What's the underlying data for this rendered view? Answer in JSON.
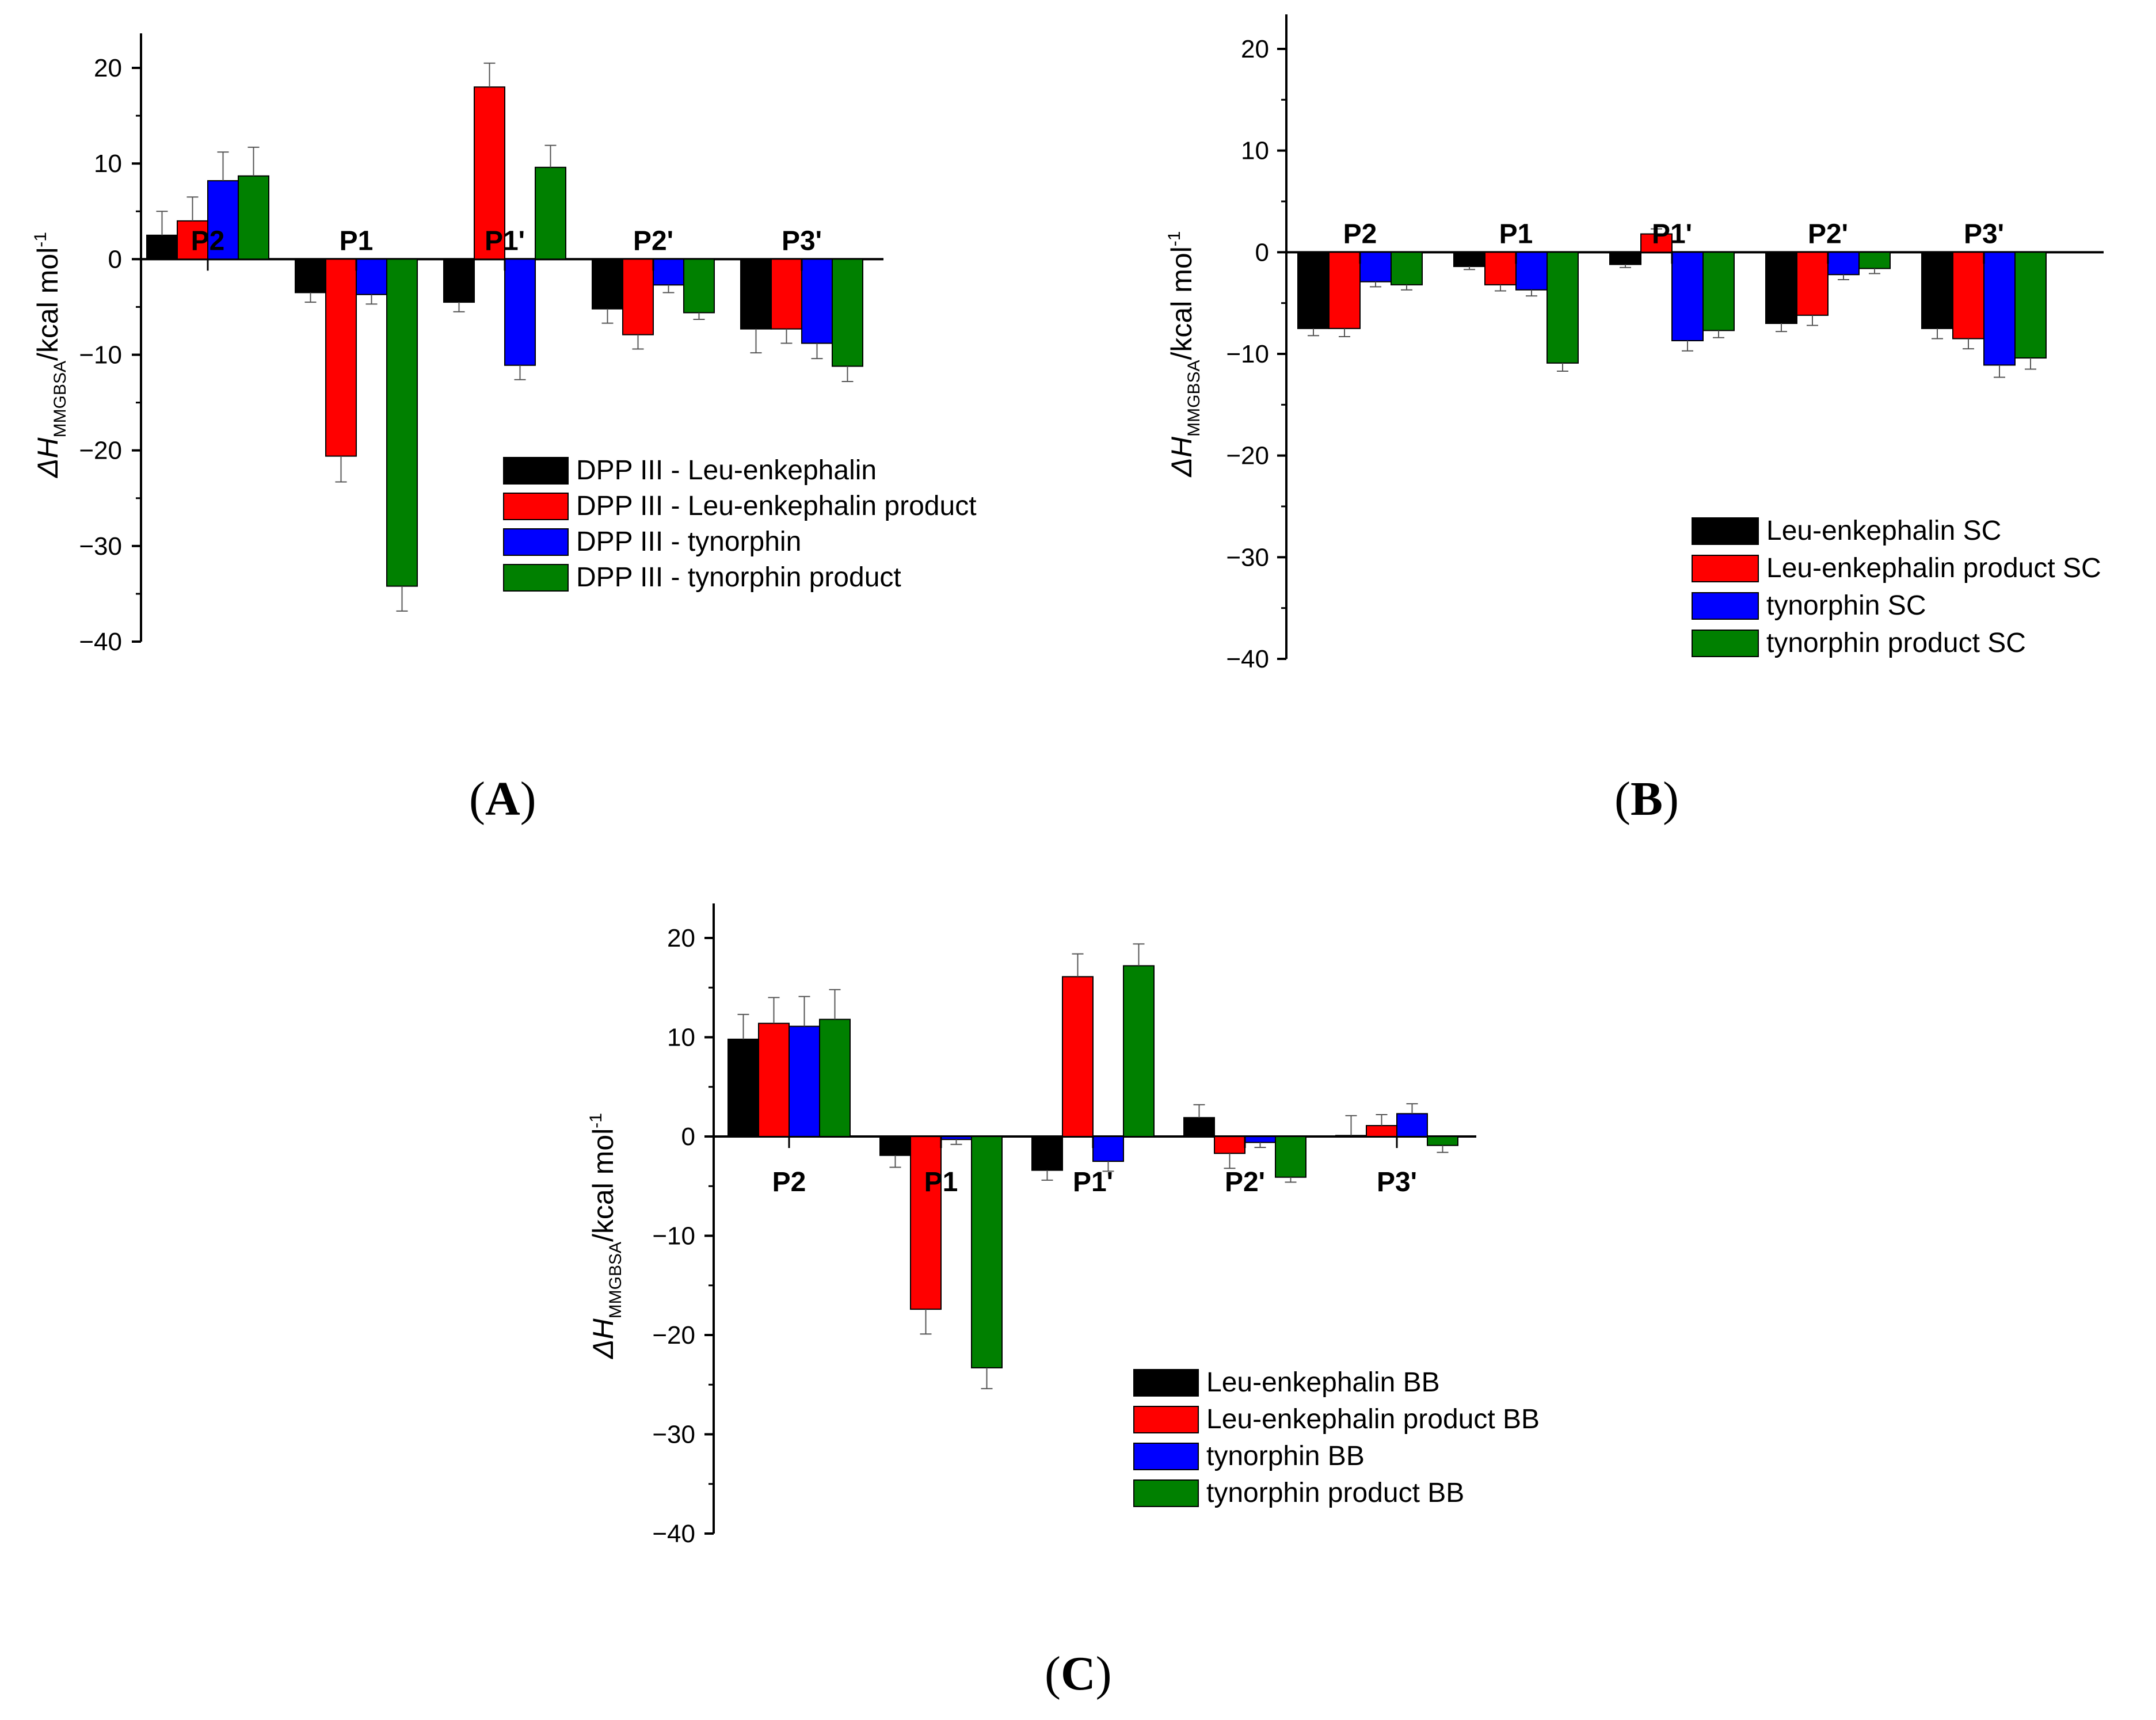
{
  "figure": {
    "panel_labels": {
      "A": "A",
      "B": "B",
      "C": "C"
    },
    "y_axis_label": {
      "delta": "ΔH",
      "subscript": "MMGBSA",
      "unit": "/kcal mol",
      "superscript": "-1"
    }
  },
  "colors": {
    "black": "#000000",
    "red": "#ff0000",
    "blue": "#0000ff",
    "green": "#008000"
  },
  "chart_data": [
    {
      "id": "A",
      "type": "bar",
      "title": "",
      "xlabel": "",
      "ylabel": "ΔH MMGBSA /kcal mol-1",
      "categories": [
        "P2",
        "P1",
        "P1'",
        "P2'",
        "P3'"
      ],
      "category_label_position": "above-axis",
      "ylim": [
        -40,
        20
      ],
      "yticks": [
        20,
        10,
        0,
        -10,
        -20,
        -30,
        -40
      ],
      "ytick_labels": [
        "20",
        "10",
        "0",
        "−10",
        "−20",
        "−30",
        "−40"
      ],
      "legend_position": "bottom-right",
      "series": [
        {
          "name": "DPP III - Leu-enkephalin",
          "color": "#000000",
          "values": [
            2.5,
            -3.5,
            -4.5,
            -5.2,
            -7.3
          ],
          "errors": [
            2.5,
            1.0,
            1.0,
            1.5,
            2.5
          ]
        },
        {
          "name": "DPP III - Leu-enkephalin product",
          "color": "#ff0000",
          "values": [
            4.0,
            -20.6,
            18.0,
            -7.9,
            -7.3
          ],
          "errors": [
            2.5,
            2.7,
            2.5,
            1.5,
            1.5
          ]
        },
        {
          "name": "DPP III - tynorphin",
          "color": "#0000ff",
          "values": [
            8.2,
            -3.7,
            -11.1,
            -2.7,
            -8.8
          ],
          "errors": [
            3.0,
            1.0,
            1.5,
            0.8,
            1.6
          ]
        },
        {
          "name": "DPP III - tynorphin product",
          "color": "#008000",
          "values": [
            8.7,
            -34.2,
            9.6,
            -5.6,
            -11.2
          ],
          "errors": [
            3.0,
            2.6,
            2.3,
            0.7,
            1.6
          ]
        }
      ]
    },
    {
      "id": "B",
      "type": "bar",
      "title": "",
      "xlabel": "",
      "ylabel": "ΔH MMGBSA /kcal mol-1",
      "categories": [
        "P2",
        "P1",
        "P1'",
        "P2'",
        "P3'"
      ],
      "category_label_position": "above-axis",
      "ylim": [
        -40,
        20
      ],
      "yticks": [
        20,
        10,
        0,
        -10,
        -20,
        -30,
        -40
      ],
      "ytick_labels": [
        "20",
        "10",
        "0",
        "−10",
        "−20",
        "−30",
        "−40"
      ],
      "legend_position": "bottom-right",
      "series": [
        {
          "name": "Leu-enkephalin SC",
          "color": "#000000",
          "values": [
            -7.5,
            -1.4,
            -1.2,
            -7.0,
            -7.5
          ],
          "errors": [
            0.7,
            0.3,
            0.3,
            0.8,
            1.0
          ]
        },
        {
          "name": "Leu-enkephalin product SC",
          "color": "#ff0000",
          "values": [
            -7.5,
            -3.2,
            1.8,
            -6.2,
            -8.5
          ],
          "errors": [
            0.8,
            0.6,
            0.5,
            1.0,
            1.0
          ]
        },
        {
          "name": "tynorphin SC",
          "color": "#0000ff",
          "values": [
            -2.9,
            -3.7,
            -8.7,
            -2.2,
            -11.1
          ],
          "errors": [
            0.5,
            0.6,
            1.0,
            0.5,
            1.2
          ]
        },
        {
          "name": "tynorphin product SC",
          "color": "#008000",
          "values": [
            -3.2,
            -10.9,
            -7.7,
            -1.6,
            -10.4
          ],
          "errors": [
            0.5,
            0.8,
            0.7,
            0.5,
            1.1
          ]
        }
      ]
    },
    {
      "id": "C",
      "type": "bar",
      "title": "",
      "xlabel": "",
      "ylabel": "ΔH MMGBSA /kcal mol-1",
      "categories": [
        "P2",
        "P1",
        "P1'",
        "P2'",
        "P3'"
      ],
      "category_label_position": "below-axis",
      "ylim": [
        -40,
        20
      ],
      "yticks": [
        20,
        10,
        0,
        -10,
        -20,
        -30,
        -40
      ],
      "ytick_labels": [
        "20",
        "10",
        "0",
        "−10",
        "−20",
        "−30",
        "−40"
      ],
      "legend_position": "bottom-right",
      "series": [
        {
          "name": "Leu-enkephalin BB",
          "color": "#000000",
          "values": [
            9.8,
            -1.9,
            -3.4,
            1.9,
            0.1
          ],
          "errors": [
            2.5,
            1.2,
            1.0,
            1.3,
            2.0
          ]
        },
        {
          "name": "Leu-enkephalin product BB",
          "color": "#ff0000",
          "values": [
            11.4,
            -17.4,
            16.1,
            -1.7,
            1.1
          ],
          "errors": [
            2.6,
            2.5,
            2.3,
            1.5,
            1.1
          ]
        },
        {
          "name": "tynorphin BB",
          "color": "#0000ff",
          "values": [
            11.1,
            -0.3,
            -2.5,
            -0.6,
            2.3
          ],
          "errors": [
            3.0,
            0.5,
            1.0,
            0.5,
            1.0
          ]
        },
        {
          "name": "tynorphin product BB",
          "color": "#008000",
          "values": [
            11.8,
            -23.3,
            17.2,
            -4.1,
            -0.9
          ],
          "errors": [
            3.0,
            2.1,
            2.2,
            0.5,
            0.7
          ]
        }
      ]
    }
  ]
}
